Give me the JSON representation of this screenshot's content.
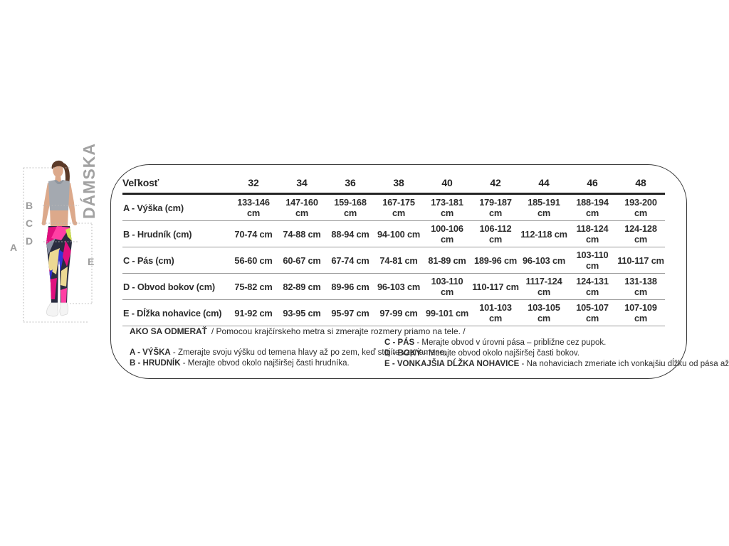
{
  "side_label": "DÁMSKA",
  "figure": {
    "letters": {
      "a": "A",
      "b": "B",
      "c": "C",
      "d": "D",
      "e": "E"
    },
    "colors": {
      "skin": "#dca98b",
      "hair": "#5b3a28",
      "top_gray": "#a4a9b0",
      "legging_navy": "#2a2d40",
      "legging_magenta": "#e00f7e",
      "legging_pink": "#ff3fa4",
      "legging_yellow": "#ecd993",
      "legging_blue": "#3434d6",
      "legging_neon": "#cfe04e",
      "legging_slate": "#8b91a3",
      "shoe_white": "#f4f4f4",
      "guide_gray": "#b8b8b8",
      "letter_gray": "#9d9d9d"
    }
  },
  "table": {
    "header": [
      "Veľkosť",
      "32",
      "34",
      "36",
      "38",
      "40",
      "42",
      "44",
      "46",
      "48"
    ],
    "rows": [
      {
        "label": "A - Výška (cm)",
        "values": [
          "133-146 cm",
          "147-160 cm",
          "159-168 cm",
          "167-175 cm",
          "173-181 cm",
          "179-187 cm",
          "185-191 cm",
          "188-194 cm",
          "193-200 cm"
        ]
      },
      {
        "label": "B - Hrudník (cm)",
        "values": [
          "70-74 cm",
          "74-88 cm",
          "88-94 cm",
          "94-100 cm",
          "100-106 cm",
          "106-112 cm",
          "112-118 cm",
          "118-124 cm",
          "124-128 cm"
        ]
      },
      {
        "label": "C - Pás (cm)",
        "values": [
          "56-60 cm",
          "60-67 cm",
          "67-74 cm",
          "74-81 cm",
          "81-89 cm",
          "189-96 cm",
          "96-103 cm",
          "103-110 cm",
          "110-117 cm"
        ]
      },
      {
        "label": "D - Obvod bokov (cm)",
        "values": [
          "75-82 cm",
          "82-89 cm",
          "89-96 cm",
          "96-103 cm",
          "103-110 cm",
          "110-117 cm",
          "1117-124 cm",
          "124-131 cm",
          "131-138 cm"
        ]
      },
      {
        "label": "E - Dĺžka nohavice (cm)",
        "values": [
          "91-92 cm",
          "93-95 cm",
          "95-97 cm",
          "97-99 cm",
          "99-101 cm",
          "101-103 cm",
          "103-105 cm",
          "105-107 cm",
          "107-109 cm"
        ]
      }
    ]
  },
  "howto": {
    "title": "AKO SA ODMERAŤ",
    "intro": "/ Pomocou krajčírskeho metra si zmerajte rozmery priamo na tele. /",
    "left": [
      {
        "key": "A -  VÝŠKA",
        "text": "- Zmerajte svoju výšku od temena hlavy až po zem, keď stojíte vzpriamene."
      },
      {
        "key": "B - HRUDNÍK",
        "text": "- Merajte obvod okolo najširšej časti hrudníka."
      }
    ],
    "right": [
      {
        "key": "C - PÁS",
        "text": "- Merajte obvod v úrovni pása – približne cez pupok."
      },
      {
        "key": "D - BOKY",
        "text": "- Merajte obvod okolo najširšej časti bokov."
      },
      {
        "key": "E - VONKAJŠIA DĹŽKA NOHAVICE",
        "text": "- Na nohaviciach zmeriate ich vonkajšiu dĺžku od pása až po spodný okraj."
      }
    ]
  }
}
